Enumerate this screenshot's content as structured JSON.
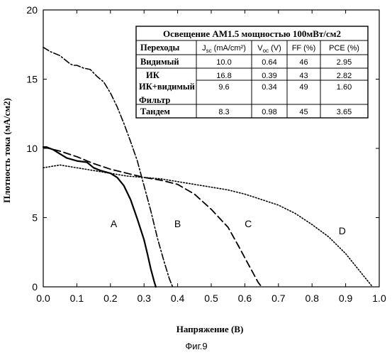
{
  "chart_data": {
    "type": "line",
    "xlabel": "Напряжение (В)",
    "ylabel": "Плотность тока (мА/см2)",
    "xlim": [
      0.0,
      1.0
    ],
    "ylim": [
      0,
      20
    ],
    "x_ticks": [
      "0.0",
      "0.1",
      "0.2",
      "0.3",
      "0.4",
      "0.5",
      "0.6",
      "0.7",
      "0.8",
      "0.9",
      "1.0"
    ],
    "y_ticks": [
      "0",
      "5",
      "10",
      "15",
      "20"
    ],
    "grid": false,
    "series": [
      {
        "name": "A",
        "style": "solid",
        "x": [
          0.0,
          0.01,
          0.03,
          0.05,
          0.07,
          0.1,
          0.13,
          0.15,
          0.17,
          0.2,
          0.22,
          0.24,
          0.26,
          0.28,
          0.3,
          0.31,
          0.32,
          0.33,
          0.335
        ],
        "y": [
          10.1,
          10.1,
          9.9,
          9.6,
          9.3,
          9.1,
          9.0,
          8.6,
          8.4,
          8.2,
          7.9,
          7.3,
          6.3,
          4.9,
          3.4,
          2.4,
          1.3,
          0.4,
          0.0
        ]
      },
      {
        "name": "B",
        "style": "dash-dot",
        "x": [
          0.0,
          0.02,
          0.05,
          0.08,
          0.09,
          0.1,
          0.12,
          0.14,
          0.16,
          0.18,
          0.2,
          0.22,
          0.24,
          0.26,
          0.28,
          0.3,
          0.32,
          0.34,
          0.36,
          0.375,
          0.385
        ],
        "y": [
          17.3,
          17.0,
          16.7,
          16.1,
          16.0,
          16.0,
          15.8,
          15.7,
          15.2,
          14.8,
          14.0,
          13.0,
          11.8,
          10.5,
          9.1,
          7.3,
          5.5,
          3.5,
          1.8,
          0.6,
          0.0
        ]
      },
      {
        "name": "C",
        "style": "dashed",
        "x": [
          0.0,
          0.05,
          0.1,
          0.15,
          0.2,
          0.25,
          0.3,
          0.35,
          0.4,
          0.45,
          0.5,
          0.55,
          0.58,
          0.6,
          0.62,
          0.64,
          0.65
        ],
        "y": [
          10.1,
          9.8,
          9.4,
          8.9,
          8.5,
          8.2,
          7.9,
          7.7,
          7.4,
          6.7,
          5.6,
          4.3,
          3.0,
          2.1,
          1.2,
          0.3,
          0.0
        ]
      },
      {
        "name": "D",
        "style": "dotted",
        "x": [
          0.0,
          0.05,
          0.1,
          0.15,
          0.2,
          0.25,
          0.3,
          0.35,
          0.4,
          0.45,
          0.5,
          0.55,
          0.6,
          0.65,
          0.7,
          0.75,
          0.8,
          0.85,
          0.9,
          0.93,
          0.96,
          0.98
        ],
        "y": [
          8.6,
          8.8,
          8.6,
          8.4,
          8.2,
          8.0,
          7.9,
          7.8,
          7.6,
          7.4,
          7.2,
          7.0,
          6.7,
          6.3,
          5.9,
          5.3,
          4.5,
          3.6,
          2.4,
          1.5,
          0.6,
          0.0
        ]
      }
    ],
    "curve_labels": [
      {
        "text": "A",
        "x": 0.21,
        "y": 4.3
      },
      {
        "text": "B",
        "x": 0.4,
        "y": 4.3
      },
      {
        "text": "C",
        "x": 0.61,
        "y": 4.3
      },
      {
        "text": "D",
        "x": 0.89,
        "y": 3.8
      }
    ],
    "table": {
      "title": "Освещение AM1.5 мощностью 100мВт/см2",
      "headers": [
        "Переходы",
        "Jsc (mA/cm²)",
        "Voc (V)",
        "FF (%)",
        "PCE (%)"
      ],
      "rows": [
        [
          "Видимый",
          "10.0",
          "0.64",
          "46",
          "2.95"
        ],
        [
          "ИК",
          "16.8",
          "0.39",
          "43",
          "2.82"
        ],
        [
          "ИК+видимый Фильтр",
          "9.6",
          "0.34",
          "49",
          "1.60"
        ],
        [
          "Тандем",
          "8.3",
          "0.98",
          "45",
          "3.65"
        ]
      ]
    }
  },
  "caption": "Фиг.9"
}
